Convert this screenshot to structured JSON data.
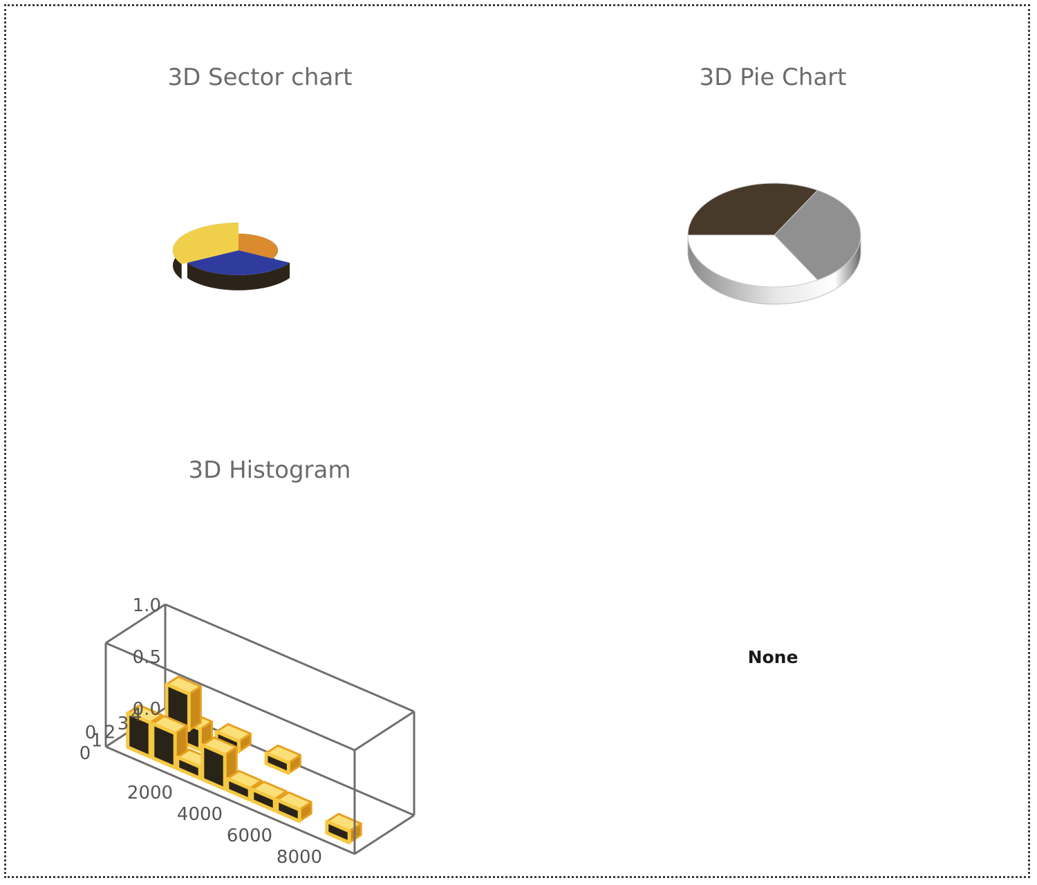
{
  "panels": {
    "sector_title": "3D Sector chart",
    "pie_title": "3D Pie Chart",
    "hist_title": "3D Histogram",
    "empty_label": "None"
  },
  "colors": {
    "sector": [
      "#d98b2e",
      "#2f3c9e",
      "#f0d04a"
    ],
    "pie": [
      "#483a2a",
      "#909090",
      "#ffffff"
    ],
    "hist_bar": "#f5c842",
    "hist_edge": "#e8a020",
    "box_line": "#6e6e6e"
  },
  "chart_data": [
    {
      "type": "pie",
      "title": "3D Sector chart",
      "values": [
        1,
        1,
        1
      ],
      "sector_radii": [
        0.6,
        0.9,
        1.0
      ]
    },
    {
      "type": "pie",
      "title": "3D Pie Chart",
      "values": [
        1,
        1,
        1
      ]
    },
    {
      "type": "bar",
      "title": "3D Histogram",
      "x_ticks": [
        "2000",
        "4000",
        "6000",
        "8000"
      ],
      "y_ticks": [
        "0",
        "1",
        "2",
        "3",
        "4"
      ],
      "z_ticks": [
        "0.0",
        "0.5",
        "1.0"
      ],
      "origin_label": "0",
      "y_origin_label": "0",
      "bins_x": [
        1000,
        2000,
        3000,
        4000,
        5000,
        6000,
        7000,
        8000,
        9000
      ],
      "front_row_counts": [
        3,
        3,
        1,
        3,
        1,
        1,
        1,
        0,
        1
      ],
      "back_bars": [
        {
          "x": 1000,
          "y": 4,
          "z": 0.35
        },
        {
          "x": 2000,
          "y": 3,
          "z": 0.2
        },
        {
          "x": 3000,
          "y": 4,
          "z": 0.1
        },
        {
          "x": 5000,
          "y": 4,
          "z": 0.1
        }
      ]
    }
  ]
}
